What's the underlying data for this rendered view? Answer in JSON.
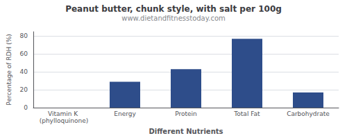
{
  "chart_data": {
    "type": "bar",
    "title": "Peanut butter, chunk style, with salt per 100g",
    "subtitle": "www.dietandfitnesstoday.com",
    "xlabel": "Different Nutrients",
    "ylabel": "Percentage of RDH (%)",
    "categories": [
      "Vitamin K (phylloquinone)",
      "Energy",
      "Protein",
      "Total Fat",
      "Carbohydrate"
    ],
    "values": [
      0,
      29,
      43,
      77,
      17
    ],
    "color": "#2e4d8a",
    "ylim": [
      0,
      85
    ],
    "yticks": [
      0,
      20,
      40,
      60,
      80
    ],
    "grid": true
  }
}
